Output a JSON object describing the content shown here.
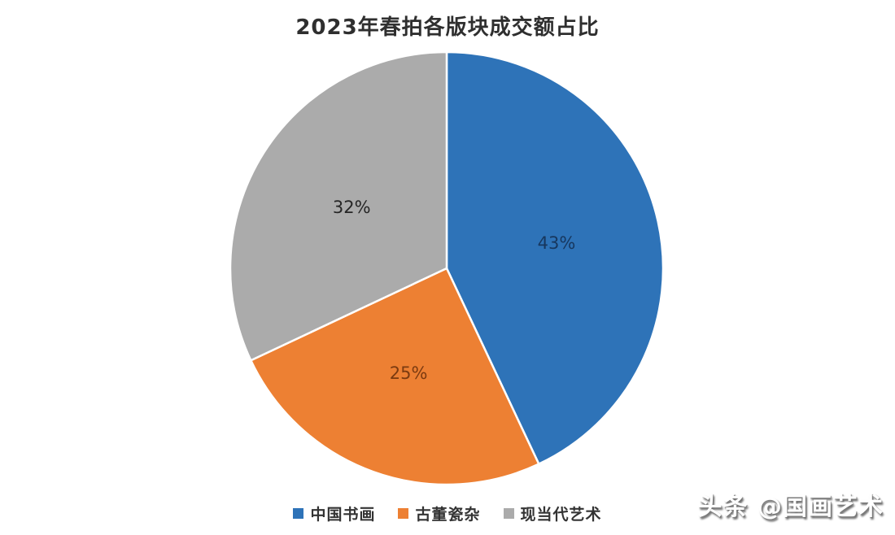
{
  "chart_data": {
    "type": "pie",
    "title": "2023年春拍各版块成交额占比",
    "direction": "clockwise",
    "start_angle_deg": 0,
    "legend_position": "bottom",
    "data_labels_position": "inside",
    "slice_border_color": "#ffffff",
    "segments": [
      {
        "name": "chinese-painting",
        "label": "中国书画",
        "value": 43,
        "display": "43%",
        "color": "#2E73B8",
        "label_color": "#17375E"
      },
      {
        "name": "antique-porcelain",
        "label": "古董瓷杂",
        "value": 25,
        "display": "25%",
        "color": "#ED8033",
        "label_color": "#7B3A10"
      },
      {
        "name": "modern-contemporary-art",
        "label": "现当代艺术",
        "value": 32,
        "display": "32%",
        "color": "#ABABAB",
        "label_color": "#262626"
      }
    ]
  },
  "watermark": {
    "text": "头条 @国画艺术"
  }
}
